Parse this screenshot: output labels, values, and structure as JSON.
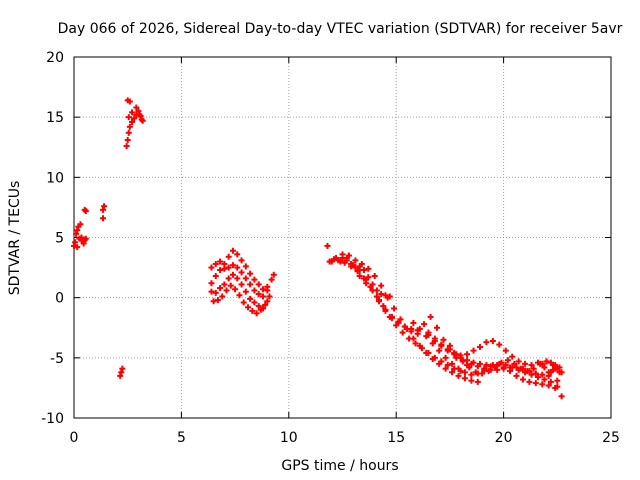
{
  "chart_data": {
    "type": "scatter",
    "title": "Day 066 of 2026, Sidereal Day-to-day VTEC variation (SDTVAR) for receiver 5avr",
    "xlabel": "GPS time / hours",
    "ylabel": "SDTVAR / TECUs",
    "xlim": [
      0,
      25
    ],
    "ylim": [
      -10,
      20
    ],
    "xticks": [
      0,
      5,
      10,
      15,
      20,
      25
    ],
    "yticks": [
      -10,
      -5,
      0,
      5,
      10,
      15,
      20
    ],
    "grid": true,
    "marker": "+",
    "colors": {
      "points": "#ff0000",
      "grid": "#a0a0a0",
      "axis": "#000000"
    },
    "series": [
      {
        "name": "SDTVAR",
        "x": [
          0.0,
          0.1,
          0.15,
          0.2,
          0.3,
          0.35,
          0.45,
          0.5,
          0.55,
          0.05,
          0.15,
          0.25,
          0.35,
          0.45,
          0.55,
          0.5,
          1.35,
          1.35,
          1.4,
          2.15,
          2.2,
          2.25,
          2.45,
          2.5,
          2.55,
          2.6,
          2.7,
          2.8,
          2.9,
          3.0,
          3.1,
          3.2,
          2.5,
          2.6,
          2.55,
          2.7,
          2.9,
          3.05,
          3.15,
          6.4,
          6.6,
          6.8,
          7.0,
          7.2,
          7.4,
          7.6,
          7.8,
          8.0,
          8.2,
          8.4,
          8.6,
          8.8,
          9.0,
          9.3,
          6.4,
          6.6,
          6.8,
          7.0,
          7.2,
          7.4,
          7.6,
          7.8,
          8.0,
          8.2,
          8.4,
          8.6,
          8.8,
          9.0,
          9.2,
          6.4,
          6.6,
          6.8,
          7.0,
          7.2,
          7.4,
          7.6,
          7.8,
          8.0,
          8.2,
          8.4,
          8.6,
          8.8,
          9.0,
          6.5,
          6.7,
          6.9,
          7.1,
          7.3,
          7.5,
          7.7,
          7.9,
          8.1,
          8.3,
          8.5,
          8.7,
          8.9,
          9.1,
          11.8,
          11.9,
          12.2,
          12.5,
          12.7,
          12.9,
          13.1,
          13.3,
          13.5,
          13.7,
          13.9,
          14.1,
          14.3,
          14.5,
          14.7,
          12.1,
          12.4,
          12.7,
          13.0,
          13.3,
          13.6,
          13.9,
          14.2,
          14.5,
          14.8,
          15.1,
          15.4,
          15.7,
          16.0,
          16.3,
          16.6,
          16.9,
          17.2,
          17.5,
          17.8,
          18.1,
          18.3,
          12.0,
          12.3,
          12.6,
          12.9,
          13.2,
          13.5,
          13.8,
          14.1,
          14.4,
          14.7,
          15.0,
          15.3,
          15.6,
          15.9,
          16.2,
          16.5,
          16.8,
          17.1,
          17.4,
          17.7,
          18.0,
          12.5,
          12.8,
          13.1,
          13.4,
          13.7,
          14.0,
          14.3,
          14.6,
          14.9,
          15.2,
          15.5,
          15.8,
          16.1,
          16.4,
          16.7,
          17.0,
          17.3,
          17.6,
          17.9,
          18.2,
          18.5,
          18.8,
          13.0,
          13.3,
          13.6,
          13.9,
          14.2,
          14.5,
          14.8,
          15.1,
          15.4,
          15.7,
          16.0,
          16.5,
          16.8,
          17.1,
          17.4,
          17.7,
          18.0,
          18.3,
          18.6,
          18.9,
          19.2,
          19.5,
          19.8,
          20.1,
          20.4,
          20.7,
          21.0,
          21.3,
          21.6,
          21.9,
          22.2,
          22.5,
          22.7,
          18.5,
          18.8,
          19.1,
          19.4,
          19.7,
          20.0,
          20.3,
          20.6,
          20.9,
          21.2,
          21.5,
          21.8,
          22.1,
          22.4,
          22.7,
          16.5,
          16.8,
          17.1,
          17.4,
          17.7,
          18.0,
          18.3,
          18.6,
          18.9,
          19.2,
          19.5,
          19.8,
          20.1,
          20.4,
          20.7,
          21.0,
          21.3,
          21.6,
          21.9,
          22.2,
          22.5,
          15.8,
          16.1,
          16.4,
          16.7,
          17.0,
          17.3,
          17.6,
          17.9,
          18.2,
          18.5,
          18.8,
          19.1,
          19.4,
          19.7,
          20.0,
          20.3,
          20.6,
          20.9,
          21.2,
          21.5,
          21.8,
          22.1,
          22.4,
          17.5,
          17.8,
          18.1,
          18.4,
          18.7,
          19.0,
          19.3,
          19.6,
          19.9,
          20.2,
          20.5,
          20.8,
          21.1,
          21.4,
          21.7,
          22.0,
          22.3,
          22.6,
          21.8,
          22.0,
          22.2,
          22.4,
          22.6,
          22.3,
          22.1,
          22.5
        ],
        "y": [
          4.3,
          5.3,
          5.6,
          5.9,
          6.1,
          4.8,
          4.5,
          4.8,
          7.2,
          4.6,
          4.2,
          4.9,
          5.0,
          4.7,
          4.9,
          7.3,
          6.6,
          7.3,
          7.6,
          -6.5,
          -6.2,
          -5.9,
          12.6,
          13.1,
          13.7,
          14.2,
          14.6,
          14.9,
          15.2,
          15.5,
          15.1,
          14.7,
          16.4,
          16.3,
          15.0,
          15.4,
          15.8,
          15.2,
          14.8,
          2.5,
          2.8,
          3.0,
          2.8,
          3.4,
          3.9,
          3.6,
          3.1,
          2.6,
          2.0,
          1.5,
          1.1,
          0.7,
          0.9,
          1.9,
          1.2,
          1.8,
          2.3,
          2.4,
          2.5,
          2.7,
          2.5,
          2.1,
          1.6,
          1.1,
          0.6,
          0.3,
          0.1,
          0.6,
          1.5,
          0.5,
          0.4,
          0.8,
          1.1,
          1.6,
          1.9,
          1.6,
          1.1,
          0.5,
          -0.1,
          -0.4,
          -0.7,
          -0.9,
          -0.3,
          -0.3,
          -0.2,
          0.1,
          0.6,
          1.0,
          0.7,
          0.2,
          -0.4,
          -0.8,
          -1.1,
          -1.3,
          -1.0,
          -0.6,
          0.1,
          4.3,
          3.0,
          3.3,
          3.6,
          3.3,
          2.8,
          2.5,
          2.6,
          2.3,
          1.7,
          1.1,
          0.6,
          0.3,
          0.2,
          0.1,
          3.2,
          3.0,
          3.1,
          2.7,
          1.8,
          1.2,
          0.6,
          -0.2,
          -1.0,
          -1.6,
          -2.0,
          -2.4,
          -2.8,
          -3.0,
          -2.2,
          -1.6,
          -2.5,
          -3.5,
          -4.3,
          -5.0,
          -5.2,
          -5.6,
          3.0,
          3.1,
          2.9,
          2.6,
          2.2,
          1.6,
          0.9,
          0.1,
          -0.7,
          -1.6,
          -2.3,
          -2.9,
          -3.4,
          -3.8,
          -4.2,
          -4.6,
          -5.0,
          -5.3,
          -5.6,
          -5.9,
          -6.1,
          3.3,
          3.5,
          3.1,
          2.8,
          2.4,
          1.8,
          1.0,
          0.0,
          -0.9,
          -1.8,
          -2.6,
          -3.4,
          -4.0,
          -4.6,
          -5.1,
          -5.5,
          -5.9,
          -6.2,
          -6.5,
          -6.7,
          -6.9,
          -7.0,
          2.7,
          2.3,
          1.5,
          0.6,
          -0.3,
          -1.1,
          -1.7,
          -2.1,
          -2.4,
          -2.6,
          -2.7,
          -2.9,
          -3.4,
          -3.9,
          -4.4,
          -4.7,
          -5.0,
          -5.2,
          -5.4,
          -5.5,
          -5.6,
          -5.6,
          -5.5,
          -5.6,
          -5.8,
          -6.0,
          -6.2,
          -6.4,
          -6.6,
          -6.8,
          -7.0,
          -7.4,
          -8.2,
          -5.5,
          -5.7,
          -5.9,
          -6.0,
          -6.0,
          -5.9,
          -5.8,
          -5.8,
          -5.9,
          -6.1,
          -6.3,
          -6.4,
          -6.2,
          -5.9,
          -6.2,
          -3.1,
          -3.6,
          -4.0,
          -4.3,
          -4.6,
          -4.8,
          -4.7,
          -4.4,
          -4.1,
          -3.7,
          -3.6,
          -3.9,
          -4.4,
          -4.9,
          -5.3,
          -5.5,
          -5.6,
          -5.4,
          -5.8,
          -6.2,
          -6.9,
          -2.1,
          -2.6,
          -3.2,
          -3.8,
          -4.4,
          -5.0,
          -5.5,
          -5.9,
          -6.2,
          -6.4,
          -6.3,
          -6.0,
          -5.7,
          -5.6,
          -5.8,
          -6.1,
          -6.5,
          -6.8,
          -7.0,
          -7.1,
          -7.2,
          -7.3,
          -7.5,
          -4.0,
          -4.7,
          -5.3,
          -5.8,
          -6.2,
          -6.3,
          -6.1,
          -5.8,
          -5.4,
          -5.2,
          -5.5,
          -5.9,
          -6.1,
          -5.9,
          -5.5,
          -5.3,
          -5.6,
          -6.2,
          -5.5,
          -5.3,
          -5.4,
          -5.6,
          -5.8,
          -6.0,
          -6.5,
          -5.9
        ]
      }
    ]
  }
}
